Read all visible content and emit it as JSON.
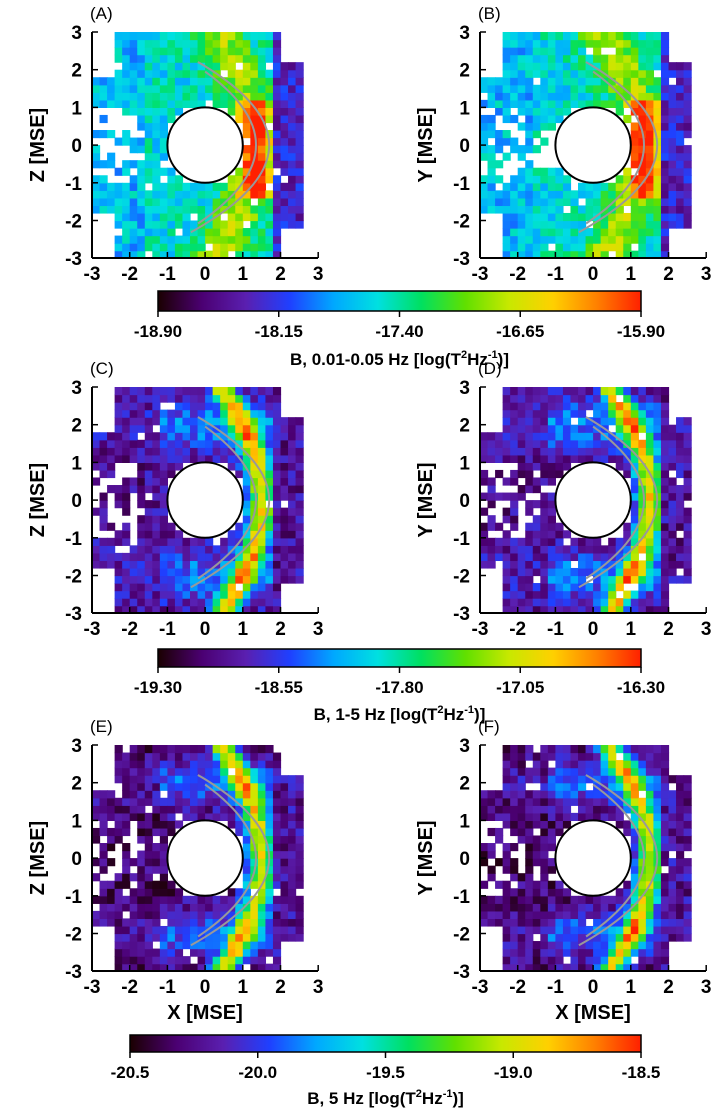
{
  "chart_data": [
    {
      "type": "heatmap",
      "panel_label": "(A)",
      "xlabel": "",
      "ylabel": "Z [MSE]",
      "xlim": [
        -3,
        3
      ],
      "ylim": [
        -3,
        3
      ],
      "xticks": [
        "-3",
        "-2",
        "-1",
        "0",
        "1",
        "2",
        "3"
      ],
      "yticks": [
        "3",
        "2",
        "1",
        "0",
        "-1",
        "-2",
        "-3"
      ],
      "overlays": [
        "planet-circle (radius 1)",
        "bow-shock curve",
        "magnetopause curve"
      ],
      "colorbar": "cb1"
    },
    {
      "type": "heatmap",
      "panel_label": "(B)",
      "xlabel": "",
      "ylabel": "Y [MSE]",
      "xlim": [
        -3,
        3
      ],
      "ylim": [
        -3,
        3
      ],
      "xticks": [
        "-3",
        "-2",
        "-1",
        "0",
        "1",
        "2",
        "3"
      ],
      "yticks": [
        "3",
        "2",
        "1",
        "0",
        "-1",
        "-2",
        "-3"
      ],
      "overlays": [
        "planet-circle (radius 1)",
        "bow-shock curve",
        "magnetopause curve"
      ],
      "colorbar": "cb1"
    },
    {
      "type": "heatmap",
      "panel_label": "(C)",
      "xlabel": "",
      "ylabel": "Z [MSE]",
      "xlim": [
        -3,
        3
      ],
      "ylim": [
        -3,
        3
      ],
      "xticks": [
        "-3",
        "-2",
        "-1",
        "0",
        "1",
        "2",
        "3"
      ],
      "yticks": [
        "3",
        "2",
        "1",
        "0",
        "-1",
        "-2",
        "-3"
      ],
      "overlays": [
        "planet-circle (radius 1)",
        "bow-shock curve",
        "magnetopause curve"
      ],
      "colorbar": "cb2"
    },
    {
      "type": "heatmap",
      "panel_label": "(D)",
      "xlabel": "",
      "ylabel": "Y [MSE]",
      "xlim": [
        -3,
        3
      ],
      "ylim": [
        -3,
        3
      ],
      "xticks": [
        "-3",
        "-2",
        "-1",
        "0",
        "1",
        "2",
        "3"
      ],
      "yticks": [
        "3",
        "2",
        "1",
        "0",
        "-1",
        "-2",
        "-3"
      ],
      "overlays": [
        "planet-circle (radius 1)",
        "bow-shock curve",
        "magnetopause curve"
      ],
      "colorbar": "cb2"
    },
    {
      "type": "heatmap",
      "panel_label": "(E)",
      "xlabel": "X [MSE]",
      "ylabel": "Z [MSE]",
      "xlim": [
        -3,
        3
      ],
      "ylim": [
        -3,
        3
      ],
      "xticks": [
        "-3",
        "-2",
        "-1",
        "0",
        "1",
        "2",
        "3"
      ],
      "yticks": [
        "3",
        "2",
        "1",
        "0",
        "-1",
        "-2",
        "-3"
      ],
      "overlays": [
        "planet-circle (radius 1)",
        "bow-shock curve",
        "magnetopause curve"
      ],
      "colorbar": "cb3"
    },
    {
      "type": "heatmap",
      "panel_label": "(F)",
      "xlabel": "X [MSE]",
      "ylabel": "Y [MSE]",
      "xlim": [
        -3,
        3
      ],
      "ylim": [
        -3,
        3
      ],
      "xticks": [
        "-3",
        "-2",
        "-1",
        "0",
        "1",
        "2",
        "3"
      ],
      "yticks": [
        "3",
        "2",
        "1",
        "0",
        "-1",
        "-2",
        "-3"
      ],
      "overlays": [
        "planet-circle (radius 1)",
        "bow-shock curve",
        "magnetopause curve"
      ],
      "colorbar": "cb3"
    }
  ],
  "colorbars": {
    "cb1": {
      "ticks": [
        "-18.90",
        "-18.15",
        "-17.40",
        "-16.65",
        "-15.90"
      ],
      "range": [
        -18.9,
        -15.9
      ],
      "title_main": "B, 0.01-0.05 Hz [log(T",
      "title_sup1": "2",
      "title_mid": "Hz",
      "title_sup2": "-1",
      "title_end": ")]"
    },
    "cb2": {
      "ticks": [
        "-19.30",
        "-18.55",
        "-17.80",
        "-17.05",
        "-16.30"
      ],
      "range": [
        -19.3,
        -16.3
      ],
      "title_main": "B, 1-5 Hz [log(T",
      "title_sup1": "2",
      "title_mid": "Hz",
      "title_sup2": "-1",
      "title_end": ")]"
    },
    "cb3": {
      "ticks": [
        "-20.5",
        "-20.0",
        "-19.5",
        "-19.0",
        "-18.5"
      ],
      "range": [
        -20.5,
        -18.5
      ],
      "title_main": "B, 5 Hz [log(T",
      "title_sup1": "2",
      "title_mid": "Hz",
      "title_sup2": "-1",
      "title_end": ")]"
    }
  },
  "colormap": [
    "#1a0000",
    "#4b0072",
    "#5a1fb0",
    "#1f40ff",
    "#00a8ff",
    "#00e0e0",
    "#00e060",
    "#60e000",
    "#c8e800",
    "#ffd000",
    "#ff8000",
    "#ff2000"
  ],
  "colors": {
    "planet_outline": "#000000",
    "boundary_curves": "#999999",
    "background": "#ffffff"
  }
}
